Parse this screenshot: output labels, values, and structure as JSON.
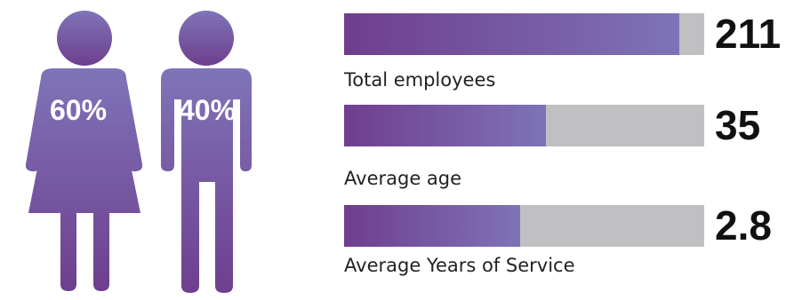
{
  "colors": {
    "figure": "#7a5aa7",
    "bar_fill_start": "#6f3e8e",
    "bar_fill_end": "#7e73b7",
    "bar_track": "#c0c0c2",
    "value_text": "#111111",
    "label_text": "#222222"
  },
  "icons": {
    "female": "female-figure-icon",
    "male": "male-figure-icon"
  },
  "chart_data": [
    {
      "type": "bar",
      "series": [
        {
          "name": "",
          "values": [
            60,
            40
          ]
        }
      ],
      "categories": [
        "Female",
        "Male"
      ],
      "labels": [
        "60%",
        "40%"
      ]
    },
    {
      "type": "bar",
      "categories": [
        "Total employees",
        "Average age",
        "Average Years of Service"
      ],
      "values": [
        211,
        35,
        2.8
      ],
      "value_labels": [
        "211",
        "35",
        "2.8"
      ],
      "fill_fraction": [
        0.93,
        0.56,
        0.49
      ]
    }
  ]
}
